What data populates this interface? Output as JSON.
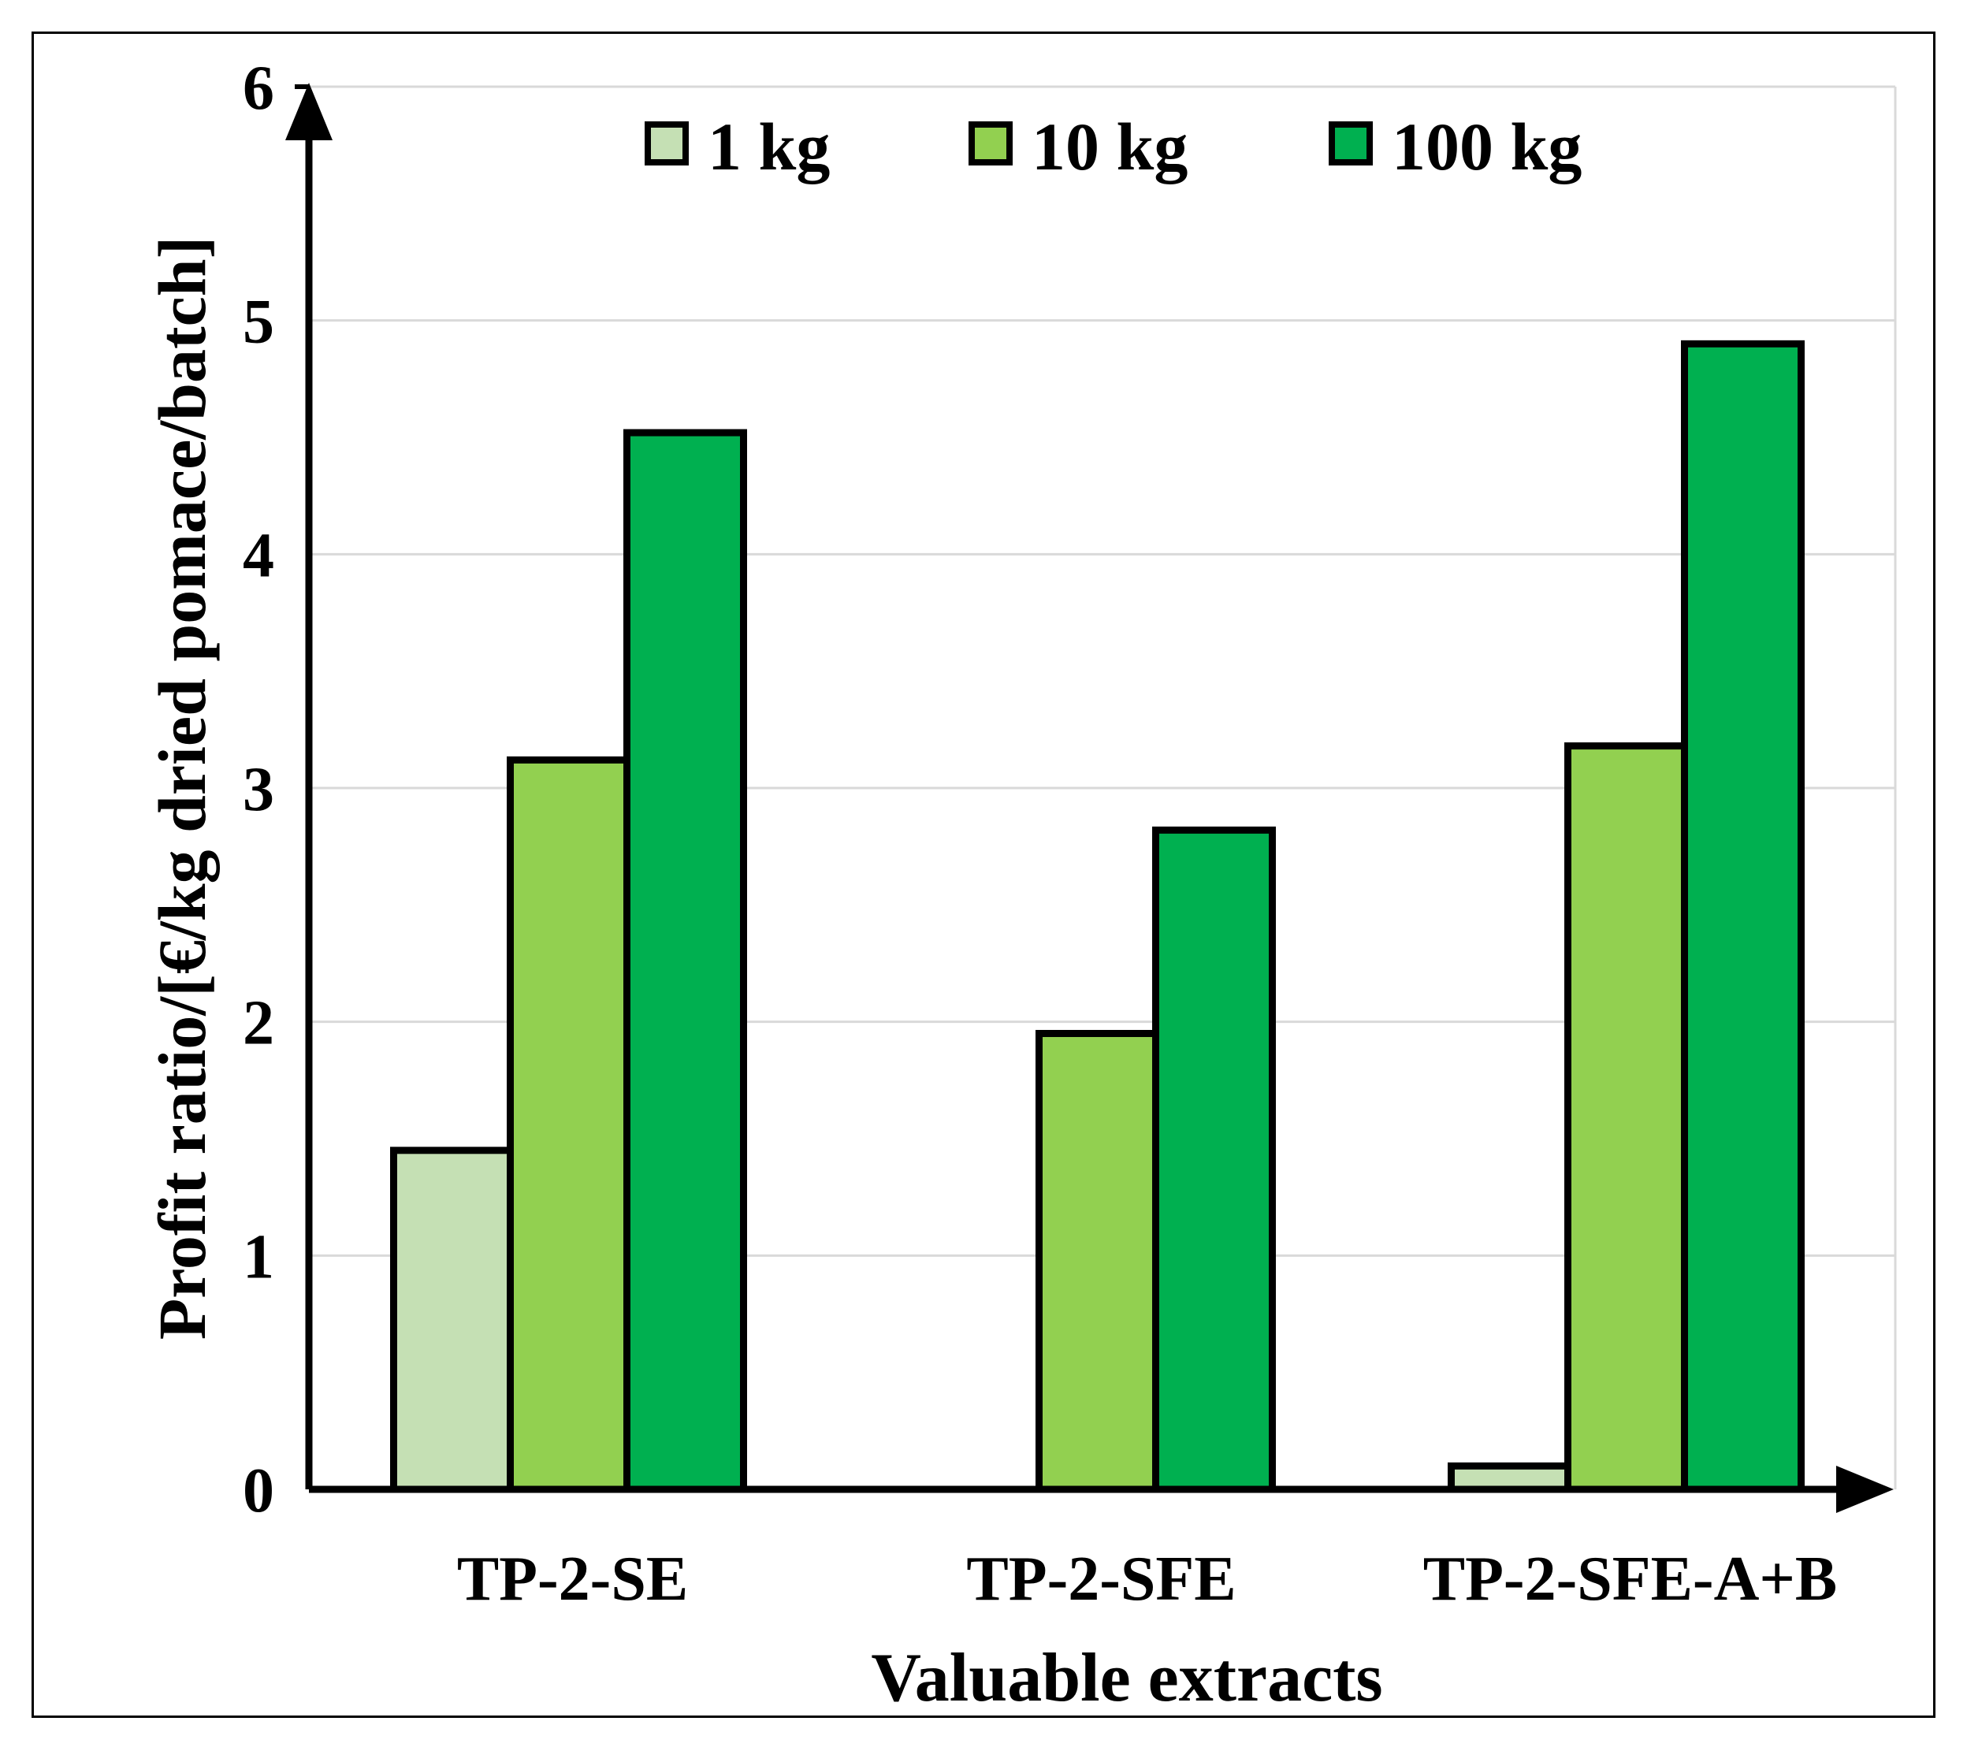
{
  "chart_data": {
    "type": "bar",
    "title": "",
    "xlabel": "Valuable extracts",
    "ylabel": "Profit ratio/[€/kg dried pomace/batch]",
    "categories": [
      "TP-2-SE",
      "TP-2-SFE",
      "TP-2-SFE-A+B"
    ],
    "series": [
      {
        "name": "1 kg",
        "values": [
          1.45,
          0,
          0.1
        ],
        "color": "#c5e0b4"
      },
      {
        "name": "10 kg",
        "values": [
          3.12,
          1.95,
          3.18
        ],
        "color": "#92d050"
      },
      {
        "name": "100 kg",
        "values": [
          4.52,
          2.82,
          4.9
        ],
        "color": "#00b050"
      }
    ],
    "ylim": [
      0,
      6
    ],
    "yticks": [
      "0",
      "1",
      "2",
      "3",
      "4",
      "5",
      "6"
    ],
    "grid": true,
    "legend": "top"
  }
}
